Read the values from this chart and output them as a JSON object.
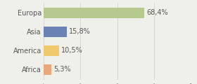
{
  "categories": [
    "Europa",
    "Asia",
    "America",
    "Africa"
  ],
  "values": [
    68.4,
    15.8,
    10.5,
    5.3
  ],
  "labels": [
    "68,4%",
    "15,8%",
    "10,5%",
    "5,3%"
  ],
  "colors": [
    "#b5c98e",
    "#6b82b5",
    "#f0c96e",
    "#e8a87c"
  ],
  "background_color": "#f0f0eb",
  "xlim": [
    0,
    100
  ],
  "bar_height": 0.55,
  "label_fontsize": 7.0,
  "category_fontsize": 7.0
}
